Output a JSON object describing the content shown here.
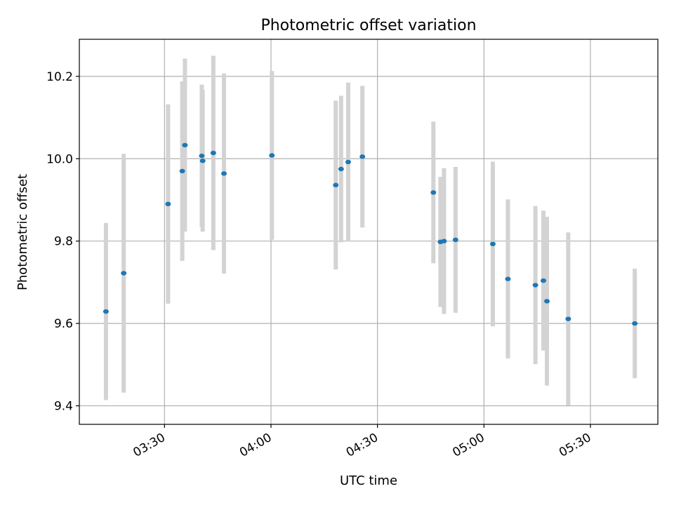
{
  "chart_data": {
    "type": "scatter",
    "title": "Photometric offset variation",
    "xlabel": "UTC time",
    "ylabel": "Photometric offset",
    "xlim": [
      "03:06",
      "05:49"
    ],
    "ylim": [
      9.355,
      10.29
    ],
    "xticks": [
      "03:30",
      "04:00",
      "04:30",
      "05:00",
      "05:30"
    ],
    "yticks": [
      9.4,
      9.6,
      9.8,
      10.0,
      10.2
    ],
    "grid": true,
    "colors": {
      "points": "#1f77b4",
      "errorbars": "#d3d3d3",
      "grid": "#b0b0b0"
    },
    "points": [
      {
        "x": "03:13:30",
        "y": 9.629,
        "yerr": 0.215
      },
      {
        "x": "03:18:30",
        "y": 9.722,
        "yerr": 0.29
      },
      {
        "x": "03:31:00",
        "y": 9.89,
        "yerr": 0.242
      },
      {
        "x": "03:35:00",
        "y": 9.97,
        "yerr": 0.218
      },
      {
        "x": "03:35:45",
        "y": 10.033,
        "yerr": 0.21
      },
      {
        "x": "03:40:30",
        "y": 10.007,
        "yerr": 0.173
      },
      {
        "x": "03:40:45",
        "y": 9.995,
        "yerr": 0.172
      },
      {
        "x": "03:43:45",
        "y": 10.014,
        "yerr": 0.236
      },
      {
        "x": "03:46:45",
        "y": 9.964,
        "yerr": 0.243
      },
      {
        "x": "04:00:15",
        "y": 10.008,
        "yerr": 0.205
      },
      {
        "x": "04:18:15",
        "y": 9.936,
        "yerr": 0.205
      },
      {
        "x": "04:19:45",
        "y": 9.975,
        "yerr": 0.178
      },
      {
        "x": "04:21:45",
        "y": 9.992,
        "yerr": 0.193
      },
      {
        "x": "04:25:45",
        "y": 10.005,
        "yerr": 0.172
      },
      {
        "x": "04:45:45",
        "y": 9.918,
        "yerr": 0.172
      },
      {
        "x": "04:47:45",
        "y": 9.798,
        "yerr": 0.158
      },
      {
        "x": "04:48:45",
        "y": 9.8,
        "yerr": 0.177
      },
      {
        "x": "04:52:00",
        "y": 9.803,
        "yerr": 0.177
      },
      {
        "x": "05:02:30",
        "y": 9.793,
        "yerr": 0.2
      },
      {
        "x": "05:06:45",
        "y": 9.708,
        "yerr": 0.193
      },
      {
        "x": "05:14:30",
        "y": 9.693,
        "yerr": 0.192
      },
      {
        "x": "05:16:45",
        "y": 9.704,
        "yerr": 0.17
      },
      {
        "x": "05:17:45",
        "y": 9.654,
        "yerr": 0.205
      },
      {
        "x": "05:23:45",
        "y": 9.611,
        "yerr": 0.21
      },
      {
        "x": "05:42:30",
        "y": 9.6,
        "yerr": 0.133
      }
    ]
  }
}
